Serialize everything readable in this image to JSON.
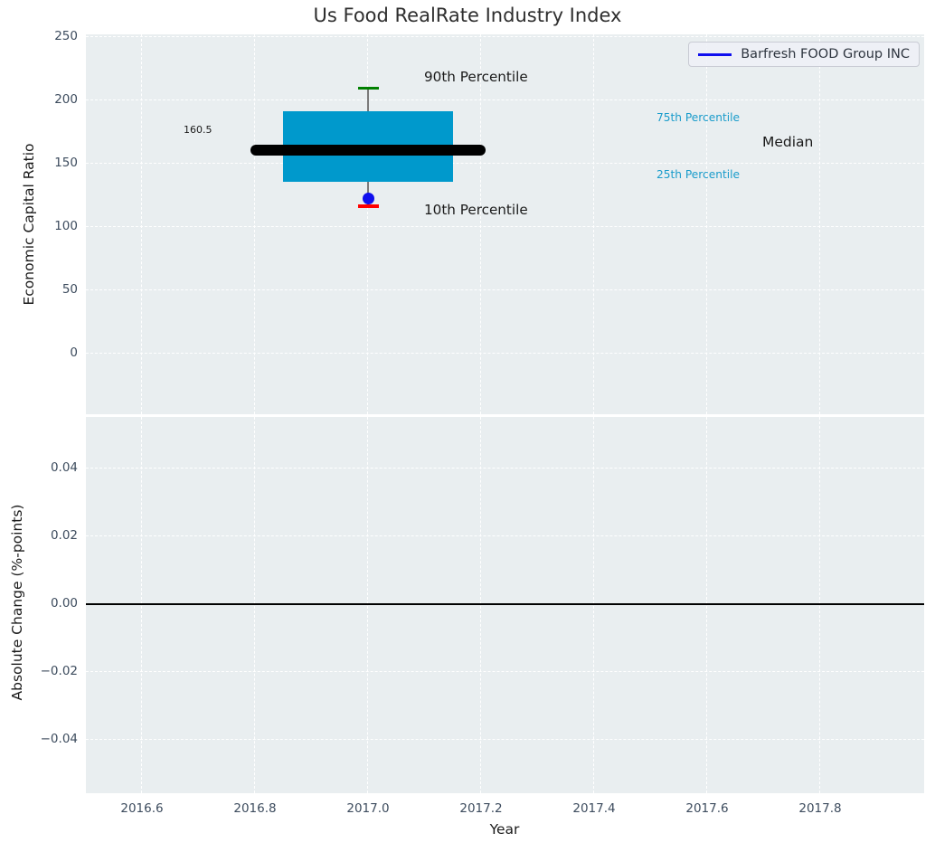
{
  "title": "Us Food RealRate Industry Index",
  "legend": {
    "series_label": "Barfresh FOOD Group INC"
  },
  "colors": {
    "plot_background": "#e9eef0",
    "gridline": "#ffffff",
    "box_fill": "#0099cc",
    "median_line": "#000000",
    "whisker": "#7a7a7a",
    "p90_cap": "#008000",
    "p10_cap": "#ff0000",
    "company_dot": "#0f0fee",
    "legend_line": "#0f0fee",
    "percentile_label": "#1a9ccb",
    "tick_label": "#3d4c5e",
    "text": "#1a1a1a"
  },
  "chart_data": {
    "type": "box",
    "title": "Us Food RealRate Industry Index",
    "xlabel": "Year",
    "series_name": "Barfresh FOOD Group INC",
    "xlim": [
      2016.5,
      2017.98
    ],
    "xticks": [
      2016.6,
      2016.8,
      2017.0,
      2017.2,
      2017.4,
      2017.6,
      2017.8
    ],
    "xtick_labels": [
      "2016.6",
      "2016.8",
      "2017.0",
      "2017.2",
      "2017.4",
      "2017.6",
      "2017.8"
    ],
    "top_axis": {
      "ylabel": "Economic Capital Ratio",
      "ylim": [
        -48,
        252
      ],
      "yticks": [
        250,
        200,
        150,
        100,
        50,
        0
      ],
      "ytick_labels": [
        "250",
        "200",
        "150",
        "100",
        "50",
        "0"
      ],
      "grid": "dashed-white"
    },
    "bottom_axis": {
      "ylabel": "Absolute Change (%-points)",
      "ylim": [
        -0.056,
        0.055
      ],
      "yticks": [
        0.04,
        0.02,
        0.0,
        -0.02,
        -0.04
      ],
      "ytick_labels": [
        "0.04",
        "0.02",
        "0.00",
        "−0.02",
        "−0.04"
      ],
      "zero_line_y": 0.0,
      "grid": "dashed-white"
    },
    "box": {
      "x_center": 2017.0,
      "box_half_width": 0.15,
      "median_half_width": 0.208,
      "p90": 209.5,
      "p75": 191.5,
      "median": 160.5,
      "p25": 135.5,
      "p10": 116.5
    },
    "company_point": {
      "x": 2017.0,
      "y": 122
    },
    "annotations": {
      "p90": "90th Percentile",
      "p75": "75th Percentile",
      "median": "Median",
      "p25": "25th Percentile",
      "p10": "10th Percentile",
      "median_value": "160.5"
    },
    "legend_position": "upper right"
  }
}
